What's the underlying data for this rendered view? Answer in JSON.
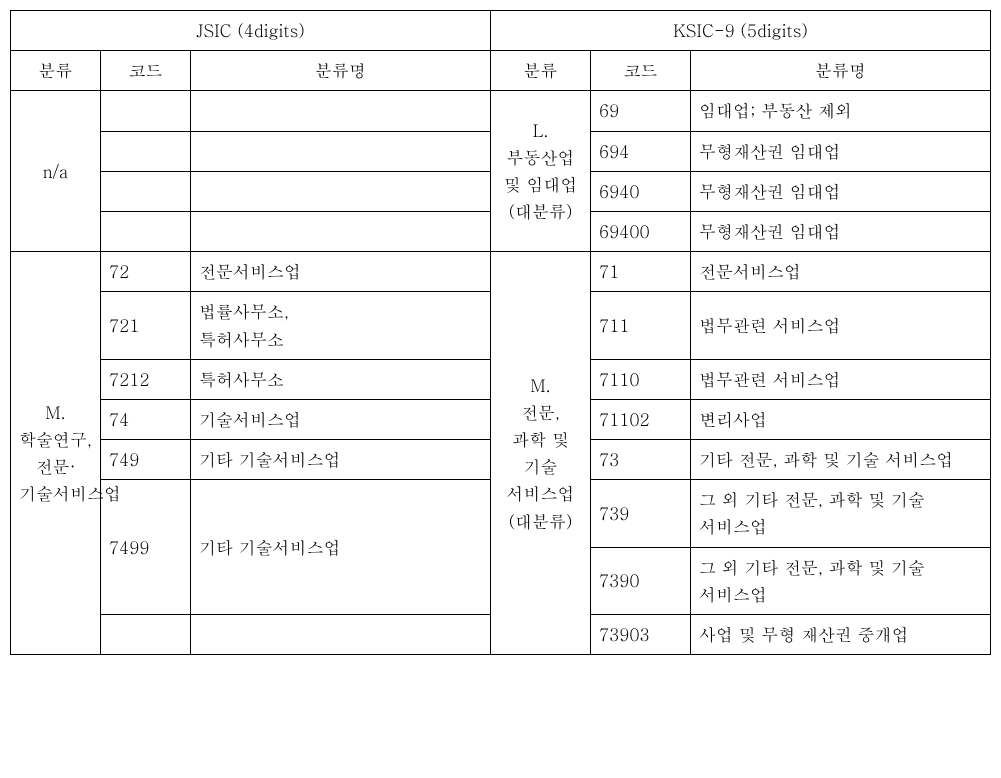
{
  "table": {
    "super_headers": {
      "left": "JSIC (4digits)",
      "right": "KSIC-9 (5digits)"
    },
    "col_headers": {
      "left": {
        "class": "분류",
        "code": "코드",
        "name": "분류명"
      },
      "right": {
        "class": "분류",
        "code": "코드",
        "name": "분류명"
      }
    },
    "group1": {
      "left_class": "n/a",
      "left_rows": [
        {
          "code": "",
          "name": ""
        },
        {
          "code": "",
          "name": ""
        },
        {
          "code": "",
          "name": ""
        },
        {
          "code": "",
          "name": ""
        }
      ],
      "right_class": "L.\n부동산업 및 임대업(대분류)",
      "right_rows": [
        {
          "code": "69",
          "name": "임대업; 부동산 제외"
        },
        {
          "code": "694",
          "name": "무형재산권 임대업"
        },
        {
          "code": "6940",
          "name": "무형재산권 임대업"
        },
        {
          "code": "69400",
          "name": "무형재산권 임대업"
        }
      ]
    },
    "group2": {
      "left_class": "M.\n학술연구,\n전문·기술서비스업",
      "left_rows": [
        {
          "code": "72",
          "name": "전문서비스업"
        },
        {
          "code": "721",
          "name": "법률사무소,\n특허사무소"
        },
        {
          "code": "7212",
          "name": "특허사무소"
        },
        {
          "code": "74",
          "name": "기술서비스업"
        },
        {
          "code": "749",
          "name": "기타 기술서비스업"
        },
        {
          "code": "7499",
          "name": "기타 기술서비스업"
        },
        {
          "code": "",
          "name": ""
        },
        {
          "code": "",
          "name": ""
        }
      ],
      "right_class": "M.\n전문,\n과학 및 기술 서비스업\n(대분류)",
      "right_rows": [
        {
          "code": "71",
          "name": "전문서비스업"
        },
        {
          "code": "711",
          "name": "법무관련 서비스업"
        },
        {
          "code": "7110",
          "name": "법무관련 서비스업"
        },
        {
          "code": "71102",
          "name": "변리사업"
        },
        {
          "code": "73",
          "name": "기타 전문, 과학 및 기술 서비스업"
        },
        {
          "code": "739",
          "name": "그 외 기타 전문, 과학 및 기술 서비스업"
        },
        {
          "code": "7390",
          "name": "그 외 기타 전문, 과학 및 기술 서비스업"
        },
        {
          "code": "73903",
          "name": "사업 및 무형 재산권 중개업"
        }
      ]
    },
    "border_color": "#000000",
    "background_color": "#ffffff",
    "font_size_pt": 13
  }
}
